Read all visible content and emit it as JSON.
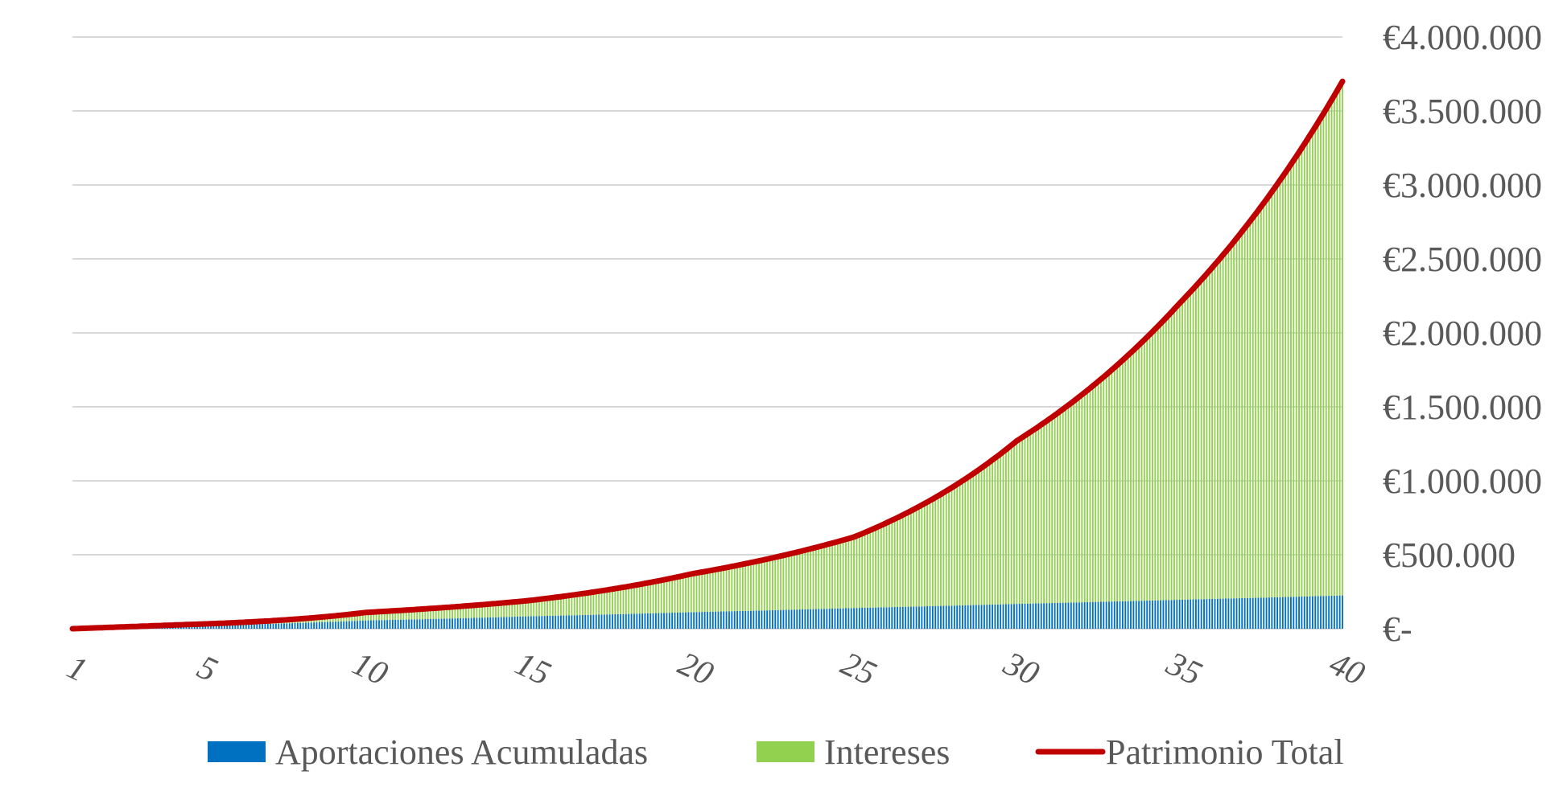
{
  "chart_data": {
    "type": "stacked-bar-with-line",
    "title": "",
    "xlabel": "",
    "ylabel": "",
    "x_unit": "year",
    "periods_per_year": 12,
    "x_range": [
      1,
      40
    ],
    "x_ticks": [
      "1",
      "5",
      "10",
      "15",
      "20",
      "25",
      "30",
      "35",
      "40"
    ],
    "y_axis_position": "right",
    "ylim": [
      0,
      4000000
    ],
    "y_ticks": [
      {
        "value": 0,
        "label": "€-"
      },
      {
        "value": 500000,
        "label": "€500.000"
      },
      {
        "value": 1000000,
        "label": "€1.000.000"
      },
      {
        "value": 1500000,
        "label": "€1.500.000"
      },
      {
        "value": 2000000,
        "label": "€2.000.000"
      },
      {
        "value": 2500000,
        "label": "€2.500.000"
      },
      {
        "value": 3000000,
        "label": "€3.000.000"
      },
      {
        "value": 3500000,
        "label": "€3.500.000"
      },
      {
        "value": 4000000,
        "label": "€4.000.000"
      }
    ],
    "grid": true,
    "legend_position": "bottom",
    "series": [
      {
        "name": "Aportaciones Acumuladas",
        "kind": "bar",
        "color": "#0070c0",
        "x": [
          1,
          5,
          10,
          15,
          20,
          25,
          30,
          35,
          40
        ],
        "values": [
          0,
          23000,
          56000,
          84000,
          112000,
          140000,
          168000,
          196000,
          225000
        ]
      },
      {
        "name": "Intereses",
        "kind": "bar",
        "color": "#92d050",
        "x": [
          1,
          5,
          10,
          15,
          20,
          25,
          30,
          35,
          40
        ],
        "values": [
          0,
          9000,
          54000,
          106000,
          258000,
          480000,
          1102000,
          2004000,
          3475000
        ]
      },
      {
        "name": "Patrimonio Total",
        "kind": "line",
        "color": "#c00000",
        "x": [
          1,
          5,
          10,
          15,
          20,
          25,
          30,
          35,
          40
        ],
        "values": [
          0,
          32000,
          110000,
          190000,
          370000,
          620000,
          1270000,
          2200000,
          3700000
        ]
      }
    ]
  }
}
